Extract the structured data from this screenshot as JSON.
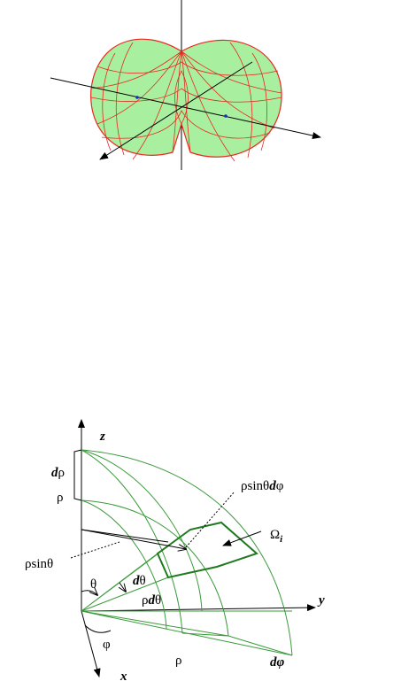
{
  "labels": {
    "z": "z",
    "d_rho": {
      "d": "d",
      "rho": "ρ"
    },
    "rho_z": "ρ",
    "rho_sin_theta_d_phi": {
      "pre": "ρsinθ",
      "d": "d",
      "phi": "φ"
    },
    "omega": {
      "base": "Ω",
      "sub": "i"
    },
    "rho_sin_theta": "ρsinθ",
    "theta": "θ",
    "d_theta": {
      "d": "d",
      "theta": "θ"
    },
    "rho_d_theta": {
      "rho": "ρ",
      "d": "d",
      "theta": "θ"
    },
    "y": "y",
    "phi": "φ",
    "rho_x": "ρ",
    "d_phi": "dφ",
    "x": "x"
  }
}
